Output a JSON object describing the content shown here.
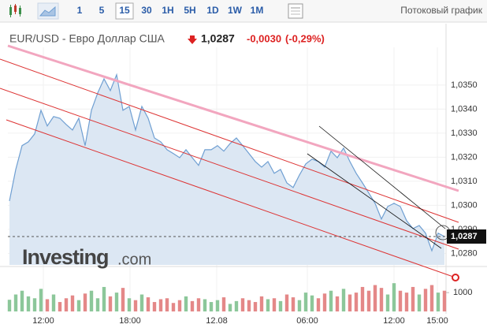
{
  "toolbar": {
    "intervals": [
      "1",
      "5",
      "15",
      "30",
      "1H",
      "5H",
      "1D",
      "1W",
      "1M"
    ],
    "active": "15",
    "stream_label": "Потоковый график"
  },
  "header": {
    "symbol": "EUR/USD - Евро Доллар США",
    "last": {
      "value": 1.0287,
      "label": "1,0287"
    },
    "change": {
      "value": -0.003,
      "label": "-0,0030"
    },
    "change_pct": {
      "value": -0.29,
      "label": "(-0,29%)"
    }
  },
  "logo": {
    "main": "Investing",
    "suffix": ".com"
  },
  "chart_data": {
    "type": "area",
    "line_color": "#6f9fd2",
    "fill_color": "#dce7f3",
    "grid": true,
    "x": [
      0,
      1,
      2,
      3,
      4,
      5,
      6,
      7,
      8,
      9,
      10,
      11,
      12,
      13,
      14,
      15,
      16,
      17,
      18,
      19,
      20,
      21,
      22,
      23,
      24,
      25,
      26,
      27,
      28,
      29,
      30,
      31,
      32,
      33,
      34,
      35,
      36,
      37,
      38,
      39,
      40,
      41,
      42,
      43,
      44,
      45,
      46,
      47,
      48,
      49,
      50,
      51,
      52,
      53,
      54,
      55,
      56,
      57,
      58,
      59,
      60,
      61,
      62,
      63,
      64,
      65,
      66,
      67,
      68,
      69
    ],
    "xlim": [
      0,
      69
    ],
    "xticks": [
      {
        "value": 5.375,
        "label": "12:00"
      },
      {
        "value": 19.125,
        "label": "18:00"
      },
      {
        "value": 32.875,
        "label": "12.08"
      },
      {
        "value": 47.25,
        "label": "06:00"
      },
      {
        "value": 61,
        "label": "12:00"
      },
      {
        "value": 67.875,
        "label": "15:00"
      }
    ],
    "values": [
      1.03018,
      1.03149,
      1.03248,
      1.03264,
      1.03297,
      1.03395,
      1.0333,
      1.03369,
      1.03362,
      1.03336,
      1.03313,
      1.03362,
      1.03248,
      1.03395,
      1.03467,
      1.03526,
      1.03477,
      1.03543,
      1.03395,
      1.03411,
      1.03313,
      1.03411,
      1.03362,
      1.0328,
      1.03264,
      1.03231,
      1.03215,
      1.03198,
      1.03231,
      1.03198,
      1.03166,
      1.03231,
      1.03231,
      1.03248,
      1.03225,
      1.03257,
      1.0328,
      1.03248,
      1.03215,
      1.03182,
      1.03159,
      1.03182,
      1.03133,
      1.03149,
      1.03093,
      1.03074,
      1.03126,
      1.03172,
      1.03192,
      1.03182,
      1.03159,
      1.03225,
      1.03198,
      1.03238,
      1.03182,
      1.03133,
      1.03093,
      1.03051,
      1.03008,
      1.02943,
      1.02995,
      1.03008,
      1.02995,
      1.02936,
      1.02903,
      1.02916,
      1.02884,
      1.02811,
      1.02884,
      1.0287
    ],
    "ylim": [
      1.02752,
      1.03657
    ],
    "yticks": [
      {
        "value": 1.028,
        "label": "1,0280"
      },
      {
        "value": 1.029,
        "label": "1,0290"
      },
      {
        "value": 1.03,
        "label": "1,0300"
      },
      {
        "value": 1.031,
        "label": "1,0310"
      },
      {
        "value": 1.032,
        "label": "1,0320"
      },
      {
        "value": 1.033,
        "label": "1,0330"
      },
      {
        "value": 1.034,
        "label": "1,0340"
      },
      {
        "value": 1.035,
        "label": "1,0350"
      }
    ],
    "volume": {
      "values": [
        620,
        900,
        1100,
        800,
        700,
        1200,
        650,
        900,
        500,
        700,
        850,
        600,
        950,
        1100,
        700,
        1300,
        800,
        1000,
        1250,
        700,
        600,
        900,
        750,
        500,
        650,
        700,
        450,
        600,
        800,
        550,
        700,
        650,
        500,
        600,
        750,
        400,
        550,
        700,
        600,
        500,
        800,
        650,
        700,
        550,
        900,
        750,
        600,
        1000,
        850,
        700,
        950,
        1100,
        800,
        1200,
        900,
        1000,
        1300,
        1100,
        1400,
        1250,
        900,
        1500,
        1100,
        1000,
        1300,
        900,
        1200,
        1400,
        1000,
        1100
      ],
      "ylim": [
        0,
        1800
      ],
      "yticks": [
        1000
      ],
      "up_color": "#8cc79a",
      "down_color": "#e48888"
    }
  }
}
